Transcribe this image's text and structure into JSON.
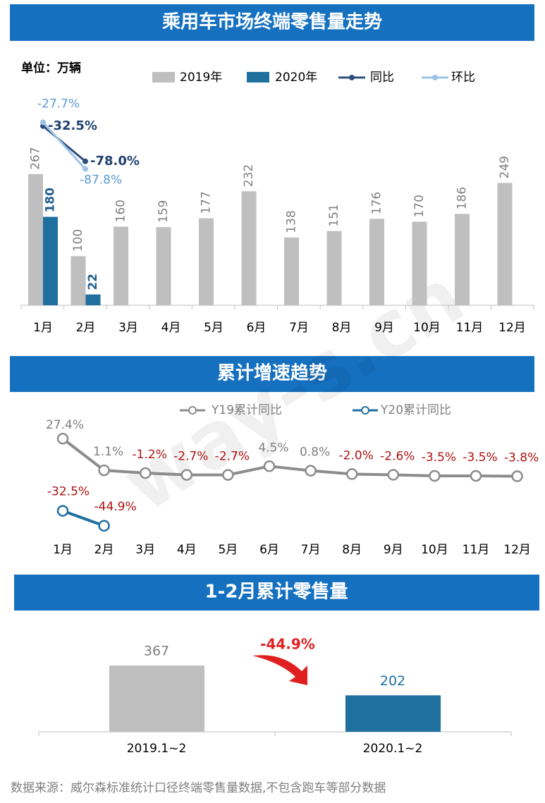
{
  "chart_data": [
    {
      "type": "bar",
      "title": "乘用车市场终端零售量走势",
      "unit": "单位：万辆",
      "categories": [
        "1月",
        "2月",
        "3月",
        "4月",
        "5月",
        "6月",
        "7月",
        "8月",
        "9月",
        "10月",
        "11月",
        "12月"
      ],
      "series": [
        {
          "name": "2019年",
          "color": "#bfbfbf",
          "values": [
            267,
            100,
            160,
            159,
            177,
            232,
            138,
            151,
            176,
            170,
            186,
            249
          ]
        },
        {
          "name": "2020年",
          "color": "#1f6f9f",
          "values": [
            180,
            22,
            null,
            null,
            null,
            null,
            null,
            null,
            null,
            null,
            null,
            null
          ]
        },
        {
          "name": "同比",
          "type": "line",
          "color": "#2f4f7f",
          "values": [
            -32.5,
            -78.0,
            null,
            null,
            null,
            null,
            null,
            null,
            null,
            null,
            null,
            null
          ],
          "value_labels": [
            "-32.5%",
            "-78.0%",
            null,
            null,
            null,
            null,
            null,
            null,
            null,
            null,
            null,
            null
          ]
        },
        {
          "name": "环比",
          "type": "line",
          "color": "#9dc3e6",
          "values": [
            -27.7,
            -87.8,
            null,
            null,
            null,
            null,
            null,
            null,
            null,
            null,
            null,
            null
          ],
          "value_labels": [
            "-27.7%",
            "-87.8%",
            null,
            null,
            null,
            null,
            null,
            null,
            null,
            null,
            null,
            null
          ]
        }
      ]
    },
    {
      "type": "line",
      "title": "累计增速趋势",
      "categories": [
        "1月",
        "2月",
        "3月",
        "4月",
        "5月",
        "6月",
        "7月",
        "8月",
        "9月",
        "10月",
        "11月",
        "12月"
      ],
      "series": [
        {
          "name": "Y19累计同比",
          "color": "#8c8c8c",
          "values": [
            27.4,
            1.1,
            -1.2,
            -2.7,
            -2.7,
            4.5,
            0.8,
            -2.0,
            -2.6,
            -3.5,
            -3.5,
            -3.8
          ],
          "value_labels": [
            "27.4%",
            "1.1%",
            "-1.2%",
            "-2.7%",
            "-2.7%",
            "4.5%",
            "0.8%",
            "-2.0%",
            "-2.6%",
            "-3.5%",
            "-3.5%",
            "-3.8%"
          ]
        },
        {
          "name": "Y20累计同比",
          "color": "#1f6f9f",
          "values": [
            -32.5,
            -44.9,
            null,
            null,
            null,
            null,
            null,
            null,
            null,
            null,
            null,
            null
          ],
          "value_labels": [
            "-32.5%",
            "-44.9%",
            null,
            null,
            null,
            null,
            null,
            null,
            null,
            null,
            null,
            null
          ]
        }
      ]
    },
    {
      "type": "bar",
      "title": "1-2月累计零售量",
      "categories": [
        "2019.1~2",
        "2020.1~2"
      ],
      "values": [
        367,
        202
      ],
      "colors": [
        "#bfbfbf",
        "#1f6f9f"
      ],
      "annotation": "-44.9%"
    }
  ],
  "footer": "数据来源：威尔森标准统计口径终端零售量数据,不包含跑车等部分数据",
  "watermark": "way-s.cn"
}
